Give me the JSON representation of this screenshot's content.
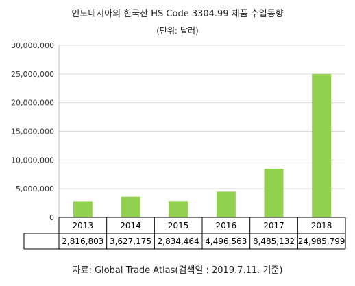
{
  "chart_data": {
    "type": "bar",
    "title": "인도네시아의 한국산 HS Code 3304.99 제품 수입동향",
    "subtitle": "(단위: 달러)",
    "categories": [
      "2013",
      "2014",
      "2015",
      "2016",
      "2017",
      "2018"
    ],
    "values": [
      2816803,
      3627175,
      2834464,
      4496563,
      8485132,
      24985799
    ],
    "value_labels": [
      "2,816,803",
      "3,627,175",
      "2,834,464",
      "4,496,563",
      "8,485,132",
      "24,985,799"
    ],
    "ylim": [
      0,
      30000000
    ],
    "yticks": [
      0,
      5000000,
      10000000,
      15000000,
      20000000,
      25000000,
      30000000
    ],
    "ytick_labels": [
      "0",
      "5,000,000",
      "10,000,000",
      "15,000,000",
      "20,000,000",
      "25,000,000",
      "30,000,000"
    ],
    "grid": true,
    "bar_color": "#92d050",
    "data_table": true
  },
  "source": "자료: Global Trade Atlas(검색일 : 2019.7.11. 기준)"
}
